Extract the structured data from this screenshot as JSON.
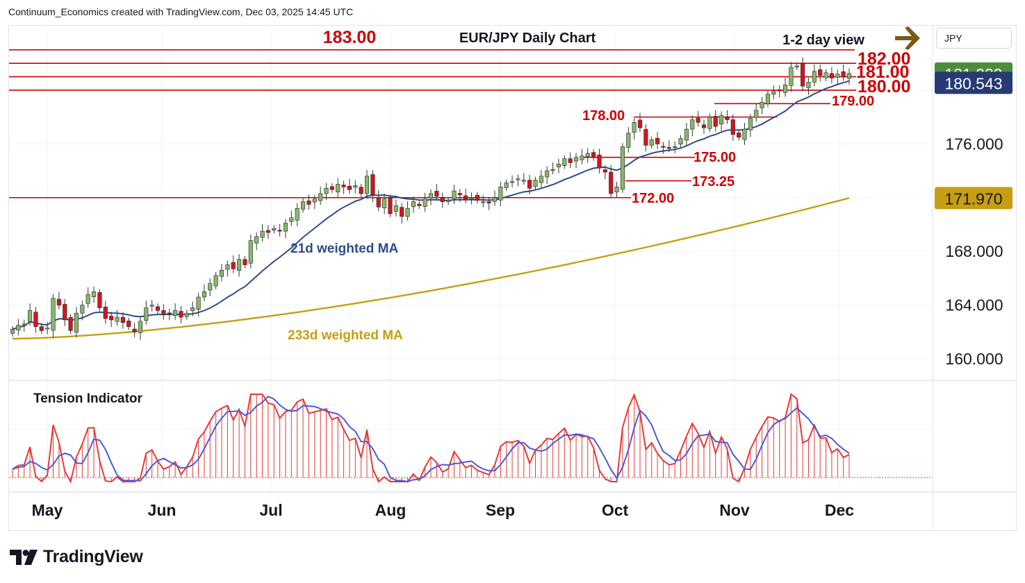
{
  "header": "Continuum_Economics created with TradingView.com, Dec 03, 2025 14:45 UTC",
  "currency": "JPY",
  "brand": {
    "name": "TradingView"
  },
  "colors": {
    "up_candle": "#88b76b",
    "down_candle": "#d4151f",
    "level_line": "#cc0000",
    "ma21": "#2b4c8c",
    "ma233": "#c79e12",
    "tension_red": "#e53935",
    "tension_blue": "#4a5adb",
    "price_green": "#4c8d3c",
    "price_navy": "#283a73",
    "price_gold": "#c79e12",
    "arrow": "#7a5c12"
  },
  "chart_data": {
    "type": "candlestick",
    "title": "EUR/JPY Daily Chart",
    "subtitle": "1-2 day view",
    "view_arrow": "right",
    "month_labels": [
      "May",
      "Jun",
      "Jul",
      "Aug",
      "Sep",
      "Oct",
      "Nov",
      "Dec"
    ],
    "y_ticks": [
      "160.000",
      "164.000",
      "168.000",
      "176.000"
    ],
    "ylim": [
      158.4,
      184.8
    ],
    "price_badges": [
      {
        "value": 181.239,
        "label": "181.239",
        "color": "green"
      },
      {
        "value": 180.543,
        "label": "180.543",
        "color": "navy"
      },
      {
        "value": 171.97,
        "label": "171.970",
        "color": "gold"
      }
    ],
    "levels": [
      {
        "value": 183.0,
        "label": "183.00"
      },
      {
        "value": 182.0,
        "label": "182.00"
      },
      {
        "value": 181.0,
        "label": "181.00"
      },
      {
        "value": 180.0,
        "label": "180.00"
      },
      {
        "value": 179.0,
        "label": "179.00"
      },
      {
        "value": 178.0,
        "label": "178.00"
      },
      {
        "value": 175.0,
        "label": "175.00"
      },
      {
        "value": 173.25,
        "label": "173.25"
      },
      {
        "value": 172.0,
        "label": "172.00"
      }
    ],
    "annotations": [
      "21d weighted MA",
      "233d weighted MA"
    ],
    "close_series": [
      162.2,
      162.5,
      162.6,
      163.6,
      162.4,
      162.1,
      162.3,
      164.5,
      164.0,
      162.9,
      162.1,
      163.4,
      164.0,
      164.8,
      165.0,
      163.8,
      163.0,
      162.9,
      163.1,
      162.7,
      162.4,
      162.0,
      162.8,
      163.8,
      164.0,
      163.6,
      163.3,
      163.4,
      163.6,
      163.1,
      163.4,
      163.8,
      164.6,
      165.0,
      165.6,
      166.2,
      166.6,
      167.0,
      166.7,
      167.4,
      167.0,
      168.8,
      169.1,
      169.5,
      169.4,
      169.7,
      169.5,
      170.1,
      170.5,
      171.2,
      171.7,
      171.5,
      171.9,
      172.3,
      172.7,
      172.6,
      173.0,
      172.8,
      172.6,
      172.9,
      172.3,
      173.6,
      172.2,
      171.3,
      171.9,
      170.8,
      171.4,
      170.6,
      171.2,
      171.7,
      171.4,
      171.9,
      172.3,
      172.1,
      171.7,
      171.8,
      172.5,
      172.2,
      171.9,
      172.0,
      171.8,
      171.7,
      171.6,
      172.0,
      172.8,
      173.1,
      173.2,
      173.4,
      173.3,
      172.7,
      173.3,
      173.6,
      174.0,
      174.1,
      174.5,
      174.9,
      174.6,
      175.0,
      175.1,
      175.3,
      175.0,
      174.2,
      173.9,
      172.3,
      172.8,
      175.8,
      176.8,
      177.6,
      177.2,
      175.9,
      176.3,
      176.0,
      175.8,
      175.7,
      175.8,
      176.4,
      177.1,
      177.8,
      177.6,
      177.2,
      178.0,
      177.3,
      178.1,
      177.8,
      176.7,
      176.5,
      177.1,
      177.9,
      178.5,
      179.1,
      179.7,
      179.9,
      180.0,
      180.4,
      181.7,
      181.8,
      180.3,
      180.6,
      181.4,
      181.1,
      181.3,
      180.9,
      181.2,
      181.0,
      181.24
    ]
  }
}
